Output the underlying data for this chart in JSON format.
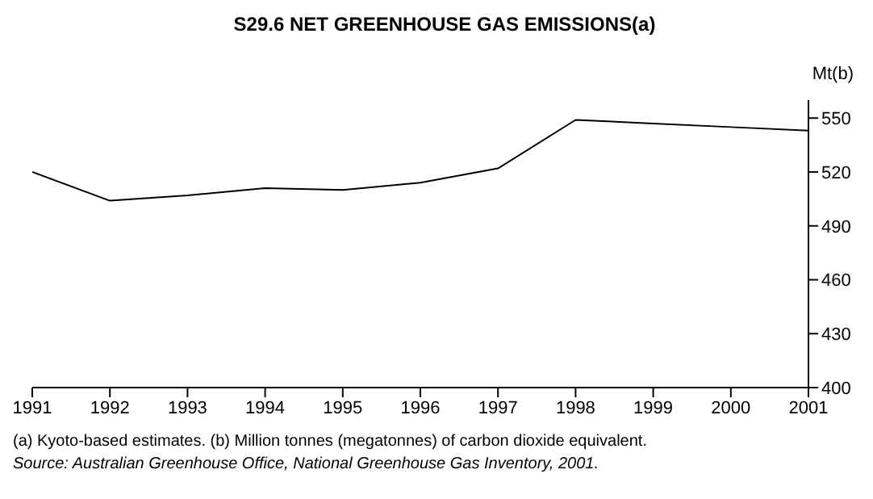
{
  "chart_data": {
    "type": "line",
    "title": "S29.6   NET GREENHOUSE GAS EMISSIONS(a)",
    "ylabel": "Mt(b)",
    "x": [
      1991,
      1992,
      1993,
      1994,
      1995,
      1996,
      1997,
      1998,
      1999,
      2000,
      2001
    ],
    "series": [
      {
        "color": "#000000",
        "values": [
          520,
          504,
          507,
          511,
          510,
          514,
          522,
          549,
          547,
          545,
          543
        ]
      }
    ],
    "xlim": [
      1991,
      2001
    ],
    "xticks": [
      1991,
      1992,
      1993,
      1994,
      1995,
      1996,
      1997,
      1998,
      1999,
      2000,
      2001
    ],
    "ylim": [
      400,
      560
    ],
    "yticks": [
      400,
      430,
      460,
      490,
      520,
      550
    ],
    "grid": false,
    "legend": false,
    "marker": "none",
    "line_style": "solid",
    "annotations": [
      "(a) Kyoto-based estimates. (b) Million tonnes (megatonnes) of carbon dioxide equivalent.",
      "Source: Australian Greenhouse Office, National Greenhouse Gas Inventory, 2001."
    ]
  }
}
